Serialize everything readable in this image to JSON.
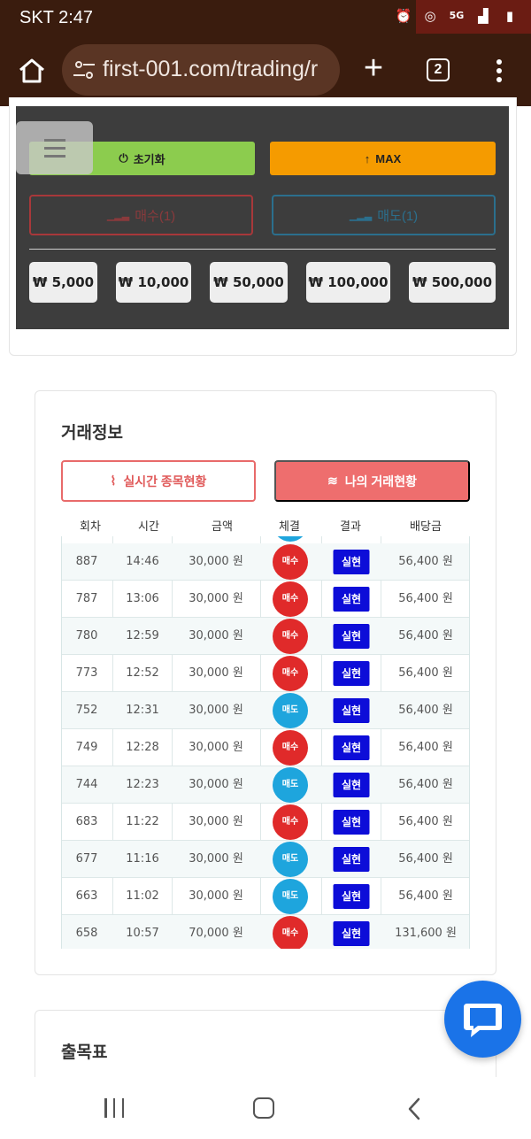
{
  "status_bar": {
    "time": "SKT 2:47",
    "icons": [
      "alarm-icon",
      "hotspot-icon",
      "5g-icon",
      "signal-icon",
      "battery-icon"
    ]
  },
  "browser": {
    "url": "first-001.com/trading/r",
    "tab_count": "2",
    "icons": [
      "home-icon",
      "tune-icon",
      "plus-icon",
      "tabs-icon",
      "more-vert-icon"
    ]
  },
  "trading_panel": {
    "reset_label": "초기화",
    "max_label": "MAX",
    "buy_label": "매수(1)",
    "sell_label": "매도(1)",
    "amounts": [
      "₩ 5,000",
      "₩ 10,000",
      "₩ 50,000",
      "₩ 100,000",
      "₩ 500,000"
    ],
    "colors": {
      "reset": "#8ccc4e",
      "max": "#f59b00",
      "buy": "#a8383a",
      "sell": "#2b6f8d"
    }
  },
  "trade_info": {
    "title": "거래정보",
    "tab_live": "실시간 종목현황",
    "tab_mine": "나의 거래현황",
    "columns": [
      "회차",
      "시간",
      "금액",
      "체결",
      "결과",
      "배당금"
    ],
    "rows": [
      {
        "round": "887",
        "time": "14:46",
        "amount": "30,000 원",
        "side": "매수",
        "side_type": "buy",
        "result": "실현",
        "payout": "56,400 원"
      },
      {
        "round": "787",
        "time": "13:06",
        "amount": "30,000 원",
        "side": "매수",
        "side_type": "buy",
        "result": "실현",
        "payout": "56,400 원"
      },
      {
        "round": "780",
        "time": "12:59",
        "amount": "30,000 원",
        "side": "매수",
        "side_type": "buy",
        "result": "실현",
        "payout": "56,400 원"
      },
      {
        "round": "773",
        "time": "12:52",
        "amount": "30,000 원",
        "side": "매수",
        "side_type": "buy",
        "result": "실현",
        "payout": "56,400 원"
      },
      {
        "round": "752",
        "time": "12:31",
        "amount": "30,000 원",
        "side": "매도",
        "side_type": "sell",
        "result": "실현",
        "payout": "56,400 원"
      },
      {
        "round": "749",
        "time": "12:28",
        "amount": "30,000 원",
        "side": "매수",
        "side_type": "buy",
        "result": "실현",
        "payout": "56,400 원"
      },
      {
        "round": "744",
        "time": "12:23",
        "amount": "30,000 원",
        "side": "매도",
        "side_type": "sell",
        "result": "실현",
        "payout": "56,400 원"
      },
      {
        "round": "683",
        "time": "11:22",
        "amount": "30,000 원",
        "side": "매수",
        "side_type": "buy",
        "result": "실현",
        "payout": "56,400 원"
      },
      {
        "round": "677",
        "time": "11:16",
        "amount": "30,000 원",
        "side": "매도",
        "side_type": "sell",
        "result": "실현",
        "payout": "56,400 원"
      },
      {
        "round": "663",
        "time": "11:02",
        "amount": "30,000 원",
        "side": "매도",
        "side_type": "sell",
        "result": "실현",
        "payout": "56,400 원"
      },
      {
        "round": "658",
        "time": "10:57",
        "amount": "70,000 원",
        "side": "매수",
        "side_type": "buy",
        "result": "실현",
        "payout": "131,600 원"
      }
    ],
    "colors": {
      "buy": "#e02a2a",
      "sell": "#1ea5dd",
      "result": "#0d0dd8"
    }
  },
  "chart_section": {
    "title": "출목표"
  },
  "chat": {
    "icon": "chat-icon",
    "color": "#1a73e8"
  },
  "nav": {
    "icons": [
      "recent-apps-icon",
      "home-icon",
      "back-icon"
    ]
  }
}
